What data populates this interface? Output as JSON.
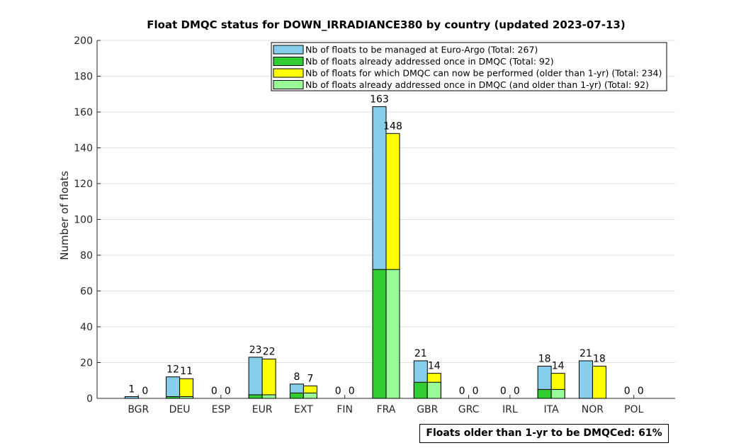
{
  "chart_data": {
    "type": "bar",
    "title": "Float DMQC status for DOWN_IRRADIANCE380 by country (updated 2023-07-13)",
    "xlabel": "",
    "ylabel": "Number of floats",
    "ylim": [
      0,
      200
    ],
    "yticks": [
      0,
      20,
      40,
      60,
      80,
      100,
      120,
      140,
      160,
      180,
      200
    ],
    "grid": true,
    "legend_position": "top-right",
    "categories": [
      "BGR",
      "DEU",
      "ESP",
      "EUR",
      "EXT",
      "FIN",
      "FRA",
      "GBR",
      "GRC",
      "IRL",
      "ITA",
      "NOR",
      "POL"
    ],
    "series": [
      {
        "name": "Nb of floats to be managed at Euro-Argo (Total: 267)",
        "color": "#87ceeb",
        "values": [
          1,
          12,
          0,
          23,
          8,
          0,
          163,
          21,
          0,
          0,
          18,
          21,
          0
        ]
      },
      {
        "name": "Nb of floats already addressed once in DMQC (Total: 92)",
        "color": "#32cd32",
        "values": [
          0,
          1,
          0,
          2,
          3,
          0,
          72,
          9,
          0,
          0,
          5,
          0,
          0
        ]
      },
      {
        "name": "Nb of floats for which DMQC can now be performed (older than 1-yr) (Total: 234)",
        "color": "#ffff00",
        "values": [
          0,
          11,
          0,
          22,
          7,
          0,
          148,
          14,
          0,
          0,
          14,
          18,
          0
        ]
      },
      {
        "name": "Nb of floats already addressed once in DMQC (and older than 1-yr) (Total: 92)",
        "color": "#98fb98",
        "values": [
          0,
          1,
          0,
          2,
          3,
          0,
          72,
          9,
          0,
          0,
          5,
          0,
          0
        ]
      }
    ],
    "annotation": "Floats older than 1-yr to be DMQCed: 61%"
  }
}
